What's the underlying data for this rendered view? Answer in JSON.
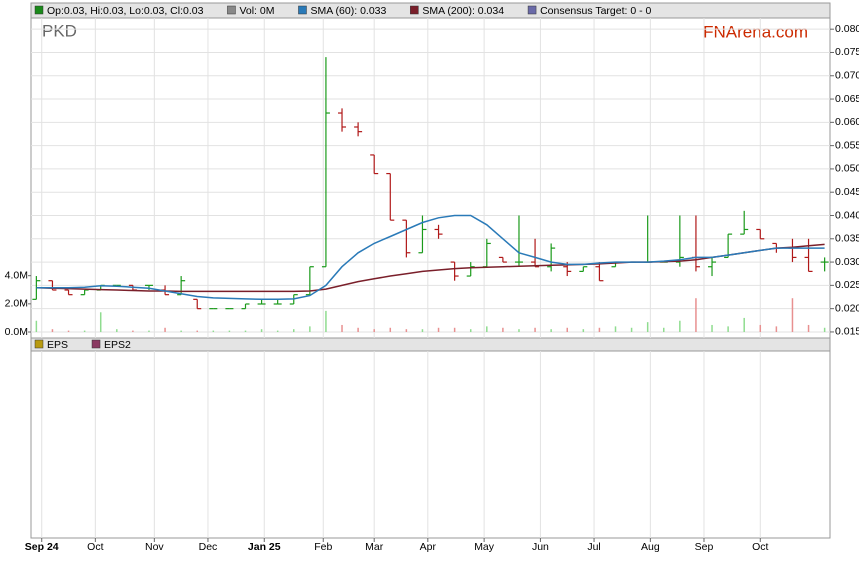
{
  "chart_data": {
    "type": "candlestick",
    "symbol": "PKD",
    "watermark": "FNArena.com",
    "legend": [
      {
        "label": "Op:0.03, Hi:0.03, Lo:0.03, Cl:0.03",
        "color": "#1a8a1a"
      },
      {
        "label": "Vol: 0M",
        "color": "#888888"
      },
      {
        "label": "SMA (60): 0.033",
        "color": "#2a7ab8"
      },
      {
        "label": "SMA (200): 0.034",
        "color": "#7a1f2a"
      },
      {
        "label": "Consensus Target: 0 - 0",
        "color": "#6a6aa8"
      }
    ],
    "up_color": "#1a9a1a",
    "down_color": "#b01818",
    "volume_up_color": "#8fdc8f",
    "volume_down_color": "#e89090",
    "x": [
      0,
      6,
      12,
      18,
      24,
      30,
      36,
      42,
      48,
      54,
      60,
      66,
      72,
      78,
      84,
      90,
      96,
      102,
      108,
      114,
      120,
      126,
      132,
      138,
      144,
      150,
      156,
      162,
      168,
      174,
      180,
      186,
      192,
      198,
      204,
      210,
      216,
      222,
      228,
      234,
      240,
      246,
      252,
      258,
      264,
      270,
      276,
      282,
      288,
      294
    ],
    "xlim": [
      -2,
      296
    ],
    "xticks": [
      {
        "value": 2,
        "label": "Sep 24"
      },
      {
        "value": 22,
        "label": "Oct"
      },
      {
        "value": 44,
        "label": "Nov"
      },
      {
        "value": 64,
        "label": "Dec"
      },
      {
        "value": 85,
        "label": "Jan 25"
      },
      {
        "value": 107,
        "label": "Feb"
      },
      {
        "value": 126,
        "label": "Mar"
      },
      {
        "value": 146,
        "label": "Apr"
      },
      {
        "value": 167,
        "label": "May"
      },
      {
        "value": 188,
        "label": "Jun"
      },
      {
        "value": 208,
        "label": "Jul"
      },
      {
        "value": 229,
        "label": "Aug"
      },
      {
        "value": 249,
        "label": "Sep"
      },
      {
        "value": 270,
        "label": "Oct"
      }
    ],
    "open": [
      0.022,
      0.026,
      0.024,
      0.023,
      0.024,
      0.025,
      0.025,
      0.025,
      0.024,
      0.023,
      0.022,
      0.02,
      0.02,
      0.02,
      0.021,
      0.021,
      0.021,
      0.023,
      0.029,
      0.062,
      0.059,
      0.053,
      0.049,
      0.039,
      0.032,
      0.037,
      0.03,
      0.027,
      0.029,
      0.031,
      0.03,
      0.03,
      0.029,
      0.029,
      0.028,
      0.029,
      0.029,
      0.03,
      0.03,
      0.03,
      0.03,
      0.031,
      0.029,
      0.031,
      0.036,
      0.037,
      0.034,
      0.033,
      0.031,
      0.03
    ],
    "high": [
      0.027,
      0.026,
      0.024,
      0.024,
      0.025,
      0.025,
      0.025,
      0.025,
      0.025,
      0.027,
      0.022,
      0.02,
      0.02,
      0.021,
      0.022,
      0.022,
      0.023,
      0.029,
      0.074,
      0.063,
      0.06,
      0.053,
      0.049,
      0.039,
      0.04,
      0.038,
      0.03,
      0.03,
      0.035,
      0.031,
      0.04,
      0.035,
      0.034,
      0.03,
      0.029,
      0.03,
      0.03,
      0.03,
      0.04,
      0.03,
      0.04,
      0.04,
      0.031,
      0.036,
      0.041,
      0.037,
      0.034,
      0.035,
      0.035,
      0.031
    ],
    "low": [
      0.022,
      0.024,
      0.023,
      0.023,
      0.024,
      0.025,
      0.024,
      0.024,
      0.023,
      0.023,
      0.02,
      0.02,
      0.02,
      0.02,
      0.021,
      0.021,
      0.021,
      0.023,
      0.029,
      0.058,
      0.057,
      0.049,
      0.039,
      0.031,
      0.032,
      0.035,
      0.026,
      0.027,
      0.029,
      0.03,
      0.029,
      0.029,
      0.028,
      0.027,
      0.028,
      0.026,
      0.029,
      0.03,
      0.03,
      0.03,
      0.029,
      0.028,
      0.027,
      0.031,
      0.036,
      0.035,
      0.032,
      0.03,
      0.028,
      0.028
    ],
    "close": [
      0.026,
      0.024,
      0.023,
      0.024,
      0.025,
      0.025,
      0.024,
      0.025,
      0.023,
      0.026,
      0.02,
      0.02,
      0.02,
      0.021,
      0.021,
      0.021,
      0.023,
      0.029,
      0.062,
      0.059,
      0.058,
      0.049,
      0.039,
      0.032,
      0.037,
      0.036,
      0.027,
      0.029,
      0.034,
      0.03,
      0.03,
      0.029,
      0.033,
      0.028,
      0.029,
      0.026,
      0.03,
      0.03,
      0.03,
      0.03,
      0.031,
      0.029,
      0.03,
      0.036,
      0.037,
      0.035,
      0.033,
      0.031,
      0.028,
      0.03
    ],
    "volume": [
      0.8,
      0.2,
      0.1,
      0.1,
      1.4,
      0.2,
      0.1,
      0.1,
      0.3,
      0.1,
      0.1,
      0.1,
      0.1,
      0.1,
      0.2,
      0.1,
      0.2,
      0.4,
      1.5,
      0.5,
      0.3,
      0.2,
      0.3,
      0.2,
      0.2,
      0.3,
      0.3,
      0.2,
      0.4,
      0.3,
      0.2,
      0.3,
      0.2,
      0.3,
      0.2,
      0.3,
      0.4,
      0.3,
      0.7,
      0.3,
      0.8,
      2.4,
      0.5,
      0.4,
      1.0,
      0.5,
      0.4,
      2.4,
      0.5,
      0.3
    ],
    "sma": [
      {
        "color": "#2a7ab8",
        "values": [
          0.0245,
          0.0245,
          0.0245,
          0.0246,
          0.0249,
          0.0248,
          0.0246,
          0.0244,
          0.0238,
          0.0232,
          0.0226,
          0.0223,
          0.0222,
          0.0221,
          0.022,
          0.022,
          0.0221,
          0.0228,
          0.025,
          0.029,
          0.032,
          0.034,
          0.0355,
          0.037,
          0.0385,
          0.0395,
          0.04,
          0.04,
          0.038,
          0.035,
          0.032,
          0.031,
          0.03,
          0.0295,
          0.0295,
          0.0298,
          0.03,
          0.03,
          0.03,
          0.0302,
          0.0305,
          0.031,
          0.031,
          0.0315,
          0.032,
          0.0325,
          0.033,
          0.033,
          0.033,
          0.033
        ]
      },
      {
        "color": "#7a1f2a",
        "values": [
          0.0245,
          0.0244,
          0.0243,
          0.0242,
          0.0241,
          0.024,
          0.0239,
          0.0238,
          0.0238,
          0.0237,
          0.0237,
          0.0237,
          0.0237,
          0.0237,
          0.0237,
          0.0237,
          0.0237,
          0.0238,
          0.0242,
          0.025,
          0.0258,
          0.0264,
          0.027,
          0.0275,
          0.028,
          0.0283,
          0.0286,
          0.0288,
          0.0289,
          0.029,
          0.0291,
          0.0292,
          0.0293,
          0.0294,
          0.0295,
          0.0296,
          0.0298,
          0.03,
          0.03,
          0.0301,
          0.0302,
          0.0305,
          0.031,
          0.0315,
          0.032,
          0.0325,
          0.033,
          0.0332,
          0.0335,
          0.0338
        ]
      }
    ],
    "ylim": [
      0.0137,
      0.0824
    ],
    "yticks": [
      {
        "value": 0.015,
        "label": "0.015"
      },
      {
        "value": 0.02,
        "label": "0.020"
      },
      {
        "value": 0.025,
        "label": "0.025"
      },
      {
        "value": 0.03,
        "label": "0.030"
      },
      {
        "value": 0.035,
        "label": "0.035"
      },
      {
        "value": 0.04,
        "label": "0.040"
      },
      {
        "value": 0.045,
        "label": "0.045"
      },
      {
        "value": 0.05,
        "label": "0.050"
      },
      {
        "value": 0.055,
        "label": "0.055"
      },
      {
        "value": 0.06,
        "label": "0.060"
      },
      {
        "value": 0.065,
        "label": "0.065"
      },
      {
        "value": 0.07,
        "label": "0.070"
      },
      {
        "value": 0.075,
        "label": "0.075"
      },
      {
        "value": 0.08,
        "label": "0.080"
      }
    ],
    "y2lim": [
      0,
      22.3
    ],
    "y2ticks": [
      {
        "value": 0,
        "label": "0.0M"
      },
      {
        "value": 2,
        "label": "2.0M"
      },
      {
        "value": 4,
        "label": "4.0M"
      }
    ],
    "grid": true,
    "eps_legend": [
      {
        "label": "EPS",
        "color": "#b89a10"
      },
      {
        "label": "EPS2",
        "color": "#8b3a62"
      }
    ]
  }
}
